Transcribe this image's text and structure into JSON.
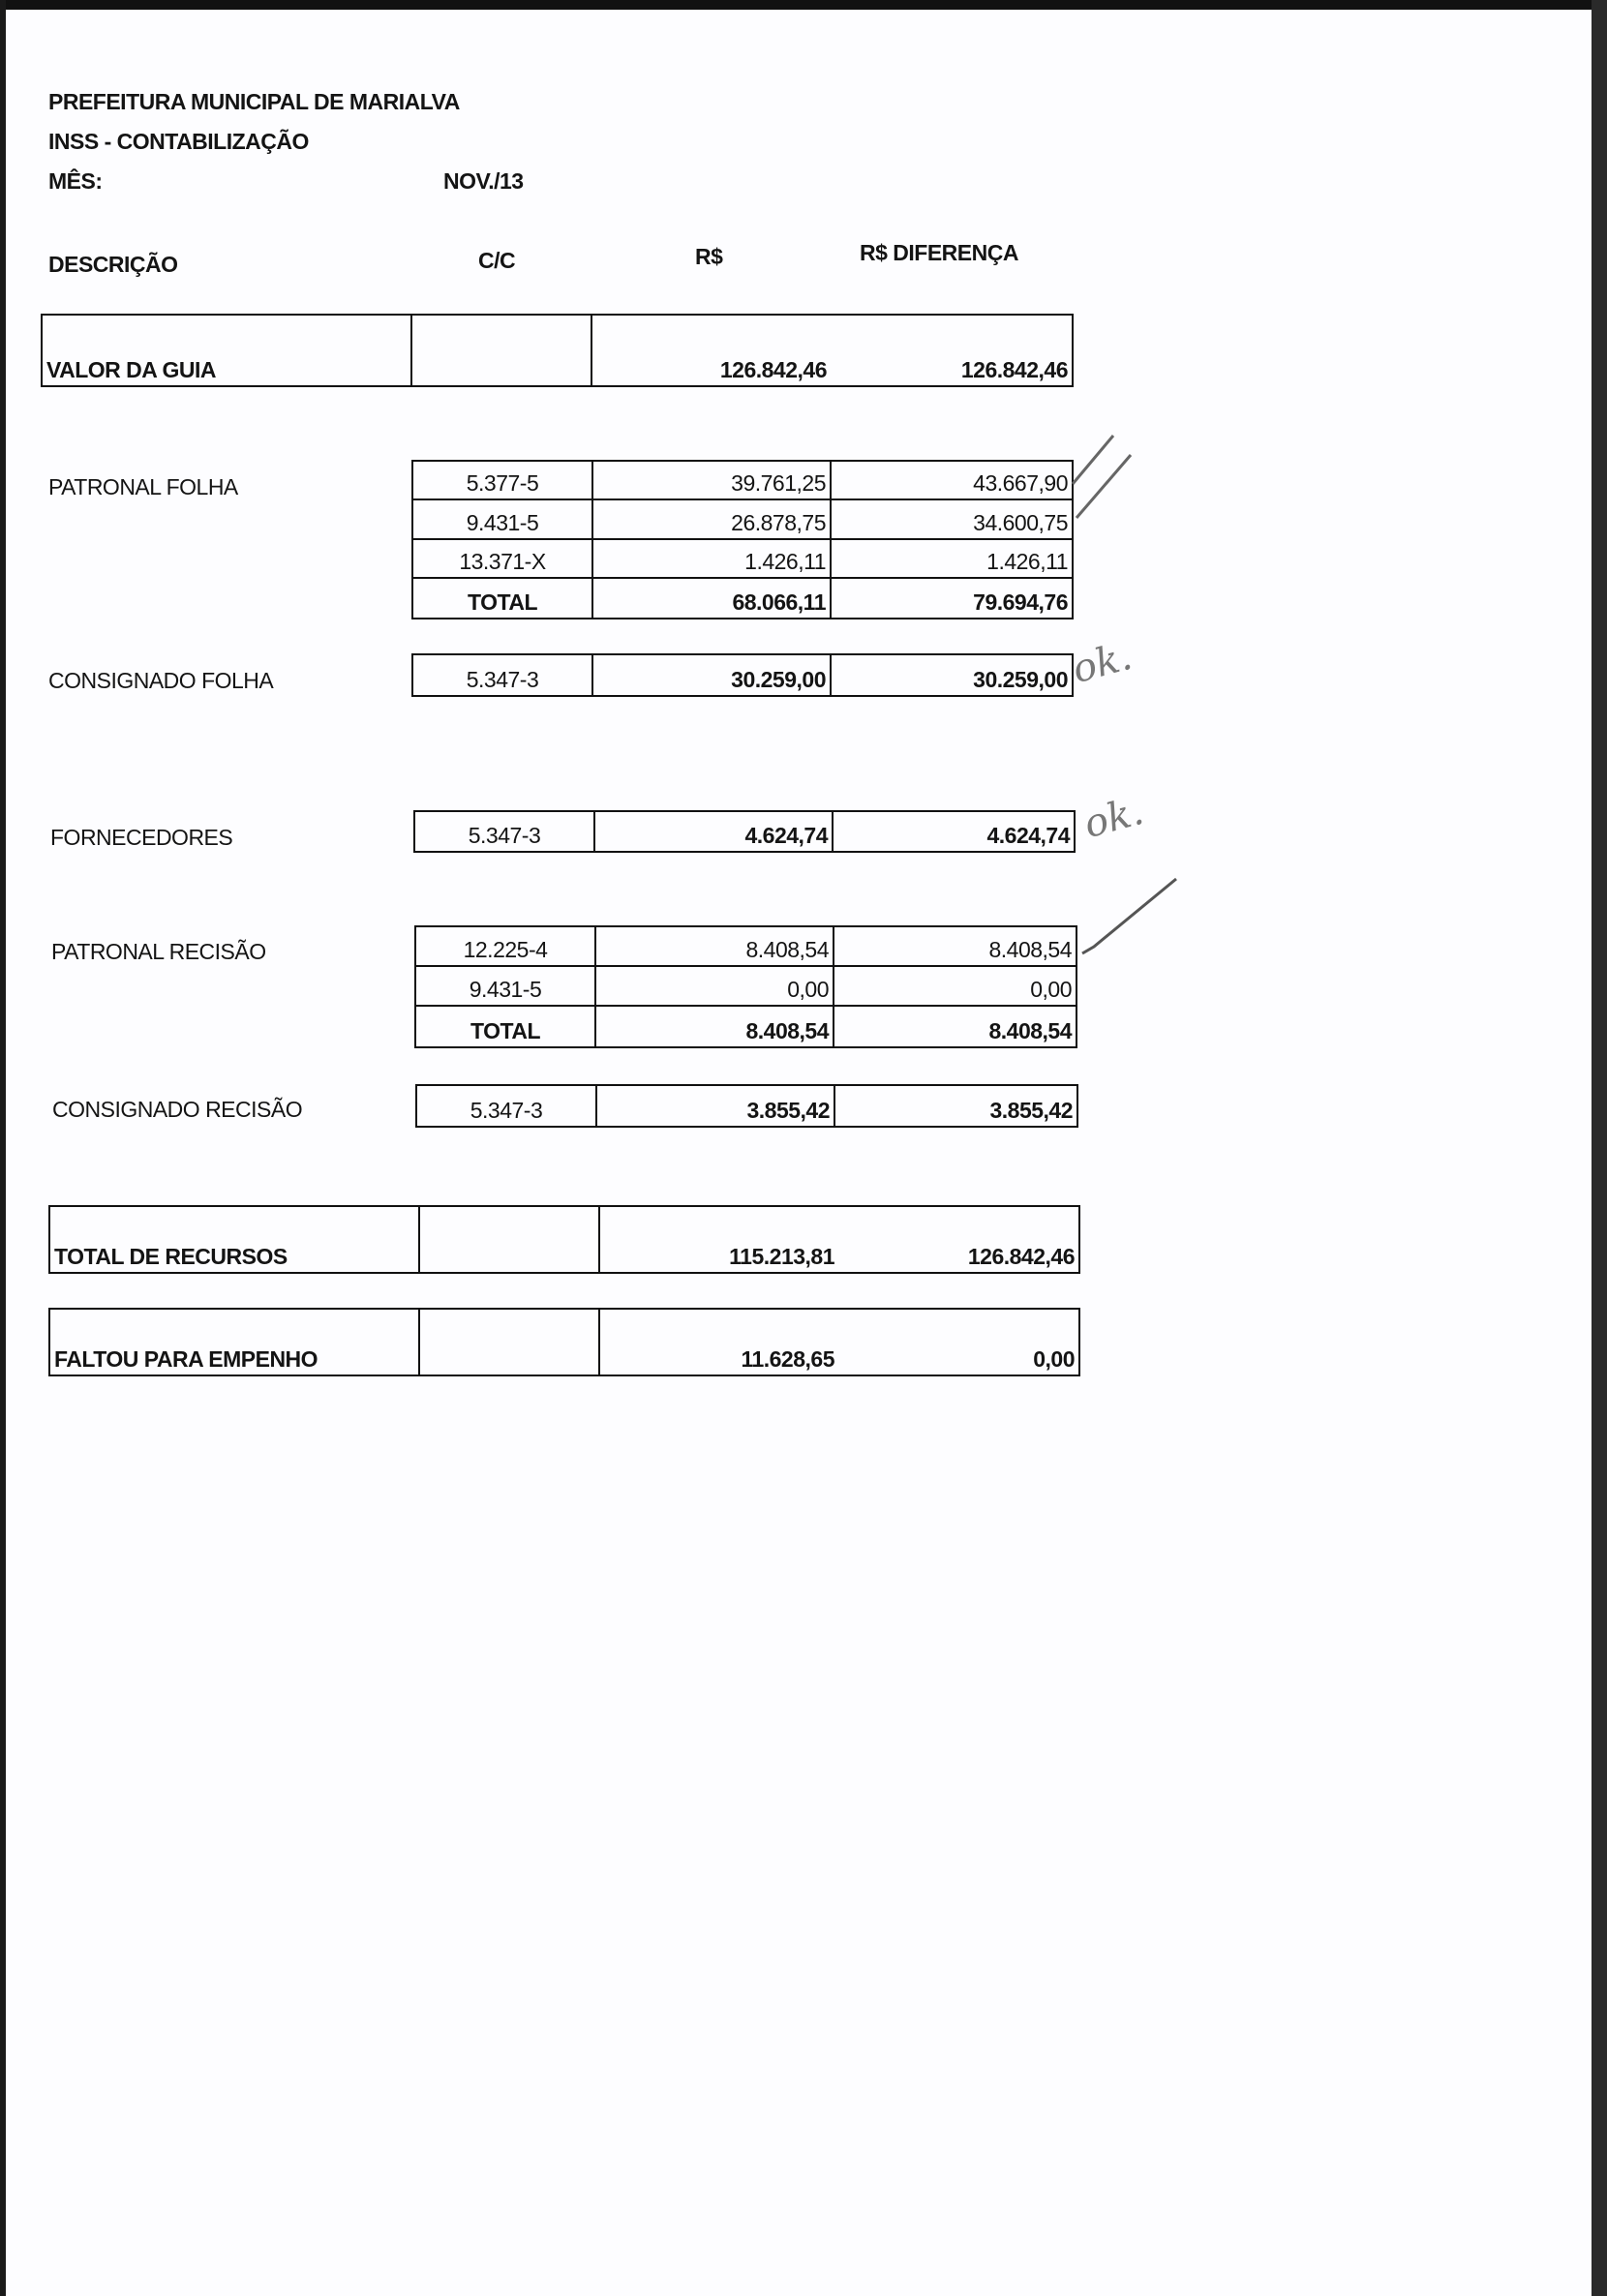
{
  "header": {
    "line1": "PREFEITURA MUNICIPAL DE MARIALVA",
    "line2": "INSS - CONTABILIZAÇÃO",
    "month_label": "MÊS:",
    "month_value": "NOV./13"
  },
  "columns": {
    "descricao": "DESCRIÇÃO",
    "cc": "C/C",
    "rs": "R$",
    "diferenca": "R$ DIFERENÇA"
  },
  "valor_guia": {
    "label": "VALOR DA GUIA",
    "cc": "",
    "rs": "126.842,46",
    "diferenca": "126.842,46"
  },
  "patronal_folha": {
    "label": "PATRONAL FOLHA",
    "rows": [
      {
        "cc": "5.377-5",
        "rs": "39.761,25",
        "diferenca": "43.667,90"
      },
      {
        "cc": "9.431-5",
        "rs": "26.878,75",
        "diferenca": "34.600,75"
      },
      {
        "cc": "13.371-X",
        "rs": "1.426,11",
        "diferenca": "1.426,11"
      },
      {
        "cc": "TOTAL",
        "rs": "68.066,11",
        "diferenca": "79.694,76"
      }
    ]
  },
  "consignado_folha": {
    "label": "CONSIGNADO FOLHA",
    "cc": "5.347-3",
    "rs": "30.259,00",
    "diferenca": "30.259,00"
  },
  "fornecedores": {
    "label": "FORNECEDORES",
    "cc": "5.347-3",
    "rs": "4.624,74",
    "diferenca": "4.624,74"
  },
  "patronal_recisao": {
    "label": "PATRONAL RECISÃO",
    "rows": [
      {
        "cc": "12.225-4",
        "rs": "8.408,54",
        "diferenca": "8.408,54"
      },
      {
        "cc": "9.431-5",
        "rs": "0,00",
        "diferenca": "0,00"
      },
      {
        "cc": "TOTAL",
        "rs": "8.408,54",
        "diferenca": "8.408,54"
      }
    ]
  },
  "consignado_recisao": {
    "label": "CONSIGNADO RECISÃO",
    "cc": "5.347-3",
    "rs": "3.855,42",
    "diferenca": "3.855,42"
  },
  "total_recursos": {
    "label": "TOTAL DE RECURSOS",
    "cc": "",
    "rs": "115.213,81",
    "diferenca": "126.842,46"
  },
  "faltou_empenho": {
    "label": "FALTOU PARA EMPENHO",
    "cc": "",
    "rs": "11.628,65",
    "diferenca": "0,00"
  },
  "handwritten": {
    "ok1": "ok.",
    "ok2": "ok."
  }
}
